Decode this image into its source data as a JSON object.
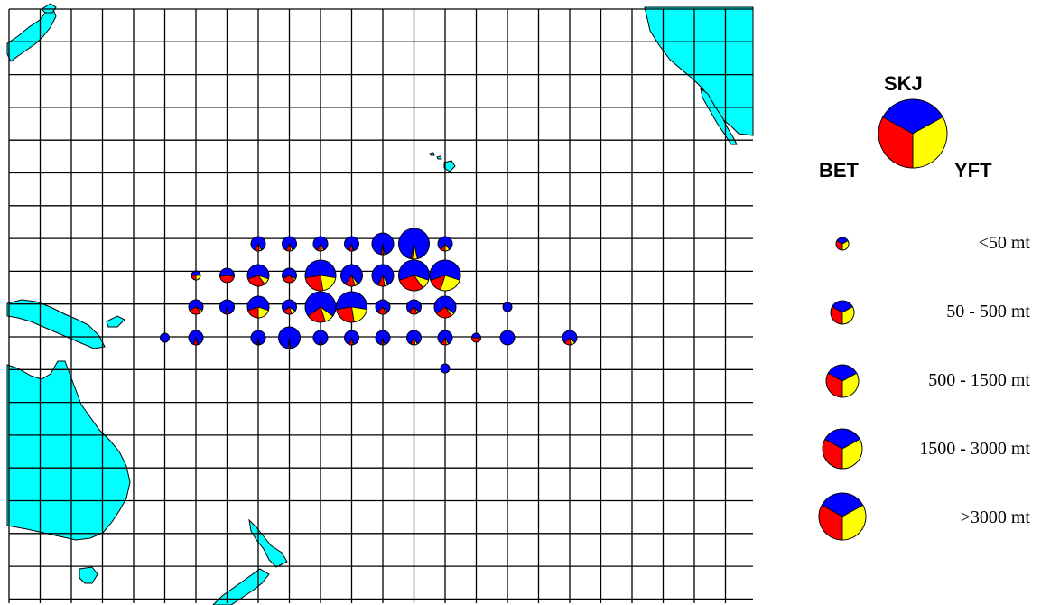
{
  "colors": {
    "land": "#00FFFF",
    "ocean": "#FFFFFF",
    "grid": "#000000",
    "skj": "#0000FF",
    "bet": "#FF0000",
    "yft": "#FFFF00"
  },
  "legend": {
    "species": {
      "top": "SKJ",
      "left": "BET",
      "right": "YFT"
    },
    "size_classes": [
      {
        "label": "<50 mt"
      },
      {
        "label": "50 - 500 mt"
      },
      {
        "label": "500 - 1500 mt"
      },
      {
        "label": "1500 - 3000 mt"
      },
      {
        "label": ">3000 mt"
      }
    ]
  },
  "catch_cells": [
    {
      "row": 0,
      "col": 8,
      "size": 2,
      "skj": 0.85,
      "bet": 0.1,
      "yft": 0.05
    },
    {
      "row": 0,
      "col": 9,
      "size": 2,
      "skj": 0.85,
      "bet": 0.1,
      "yft": 0.05
    },
    {
      "row": 0,
      "col": 10,
      "size": 2,
      "skj": 0.85,
      "bet": 0.1,
      "yft": 0.05
    },
    {
      "row": 0,
      "col": 11,
      "size": 2,
      "skj": 0.9,
      "bet": 0.08,
      "yft": 0.02
    },
    {
      "row": 0,
      "col": 12,
      "size": 3,
      "skj": 0.95,
      "bet": 0.03,
      "yft": 0.02
    },
    {
      "row": 0,
      "col": 13,
      "size": 4,
      "skj": 0.93,
      "bet": 0.02,
      "yft": 0.05
    },
    {
      "row": 0,
      "col": 14,
      "size": 2,
      "skj": 0.8,
      "bet": 0.1,
      "yft": 0.1
    },
    {
      "row": 1,
      "col": 6,
      "size": 1,
      "skj": 0.5,
      "bet": 0.25,
      "yft": 0.25
    },
    {
      "row": 1,
      "col": 7,
      "size": 2,
      "skj": 0.55,
      "bet": 0.45,
      "yft": 0.0
    },
    {
      "row": 1,
      "col": 8,
      "size": 3,
      "skj": 0.6,
      "bet": 0.3,
      "yft": 0.1
    },
    {
      "row": 1,
      "col": 9,
      "size": 2,
      "skj": 0.65,
      "bet": 0.3,
      "yft": 0.05
    },
    {
      "row": 1,
      "col": 10,
      "size": 4,
      "skj": 0.55,
      "bet": 0.25,
      "yft": 0.2
    },
    {
      "row": 1,
      "col": 11,
      "size": 3,
      "skj": 0.8,
      "bet": 0.15,
      "yft": 0.05
    },
    {
      "row": 1,
      "col": 12,
      "size": 3,
      "skj": 0.85,
      "bet": 0.1,
      "yft": 0.05
    },
    {
      "row": 1,
      "col": 13,
      "size": 4,
      "skj": 0.6,
      "bet": 0.3,
      "yft": 0.1
    },
    {
      "row": 1,
      "col": 14,
      "size": 4,
      "skj": 0.6,
      "bet": 0.15,
      "yft": 0.25
    },
    {
      "row": 2,
      "col": 6,
      "size": 2,
      "skj": 0.65,
      "bet": 0.3,
      "yft": 0.05
    },
    {
      "row": 2,
      "col": 7,
      "size": 2,
      "skj": 0.95,
      "bet": 0.05,
      "yft": 0.0
    },
    {
      "row": 2,
      "col": 8,
      "size": 3,
      "skj": 0.6,
      "bet": 0.2,
      "yft": 0.2
    },
    {
      "row": 2,
      "col": 9,
      "size": 2,
      "skj": 0.7,
      "bet": 0.2,
      "yft": 0.1
    },
    {
      "row": 2,
      "col": 10,
      "size": 4,
      "skj": 0.7,
      "bet": 0.2,
      "yft": 0.1
    },
    {
      "row": 2,
      "col": 11,
      "size": 4,
      "skj": 0.55,
      "bet": 0.25,
      "yft": 0.2
    },
    {
      "row": 2,
      "col": 12,
      "size": 2,
      "skj": 0.75,
      "bet": 0.2,
      "yft": 0.05
    },
    {
      "row": 2,
      "col": 13,
      "size": 2,
      "skj": 0.75,
      "bet": 0.2,
      "yft": 0.05
    },
    {
      "row": 2,
      "col": 14,
      "size": 3,
      "skj": 0.7,
      "bet": 0.25,
      "yft": 0.05
    },
    {
      "row": 2,
      "col": 16,
      "size": 1,
      "skj": 1.0,
      "bet": 0.0,
      "yft": 0.0
    },
    {
      "row": 3,
      "col": 5,
      "size": 1,
      "skj": 1.0,
      "bet": 0.0,
      "yft": 0.0
    },
    {
      "row": 3,
      "col": 6,
      "size": 2,
      "skj": 0.9,
      "bet": 0.08,
      "yft": 0.02
    },
    {
      "row": 3,
      "col": 8,
      "size": 2,
      "skj": 0.95,
      "bet": 0.03,
      "yft": 0.02
    },
    {
      "row": 3,
      "col": 9,
      "size": 3,
      "skj": 0.97,
      "bet": 0.02,
      "yft": 0.01
    },
    {
      "row": 3,
      "col": 10,
      "size": 2,
      "skj": 0.95,
      "bet": 0.03,
      "yft": 0.02
    },
    {
      "row": 3,
      "col": 11,
      "size": 2,
      "skj": 0.9,
      "bet": 0.07,
      "yft": 0.03
    },
    {
      "row": 3,
      "col": 12,
      "size": 2,
      "skj": 0.92,
      "bet": 0.05,
      "yft": 0.03
    },
    {
      "row": 3,
      "col": 13,
      "size": 2,
      "skj": 0.85,
      "bet": 0.1,
      "yft": 0.05
    },
    {
      "row": 3,
      "col": 14,
      "size": 2,
      "skj": 0.85,
      "bet": 0.1,
      "yft": 0.05
    },
    {
      "row": 3,
      "col": 15,
      "size": 1,
      "skj": 0.5,
      "bet": 0.45,
      "yft": 0.05
    },
    {
      "row": 3,
      "col": 16,
      "size": 2,
      "skj": 1.0,
      "bet": 0.0,
      "yft": 0.0
    },
    {
      "row": 3,
      "col": 18,
      "size": 2,
      "skj": 0.75,
      "bet": 0.15,
      "yft": 0.1
    },
    {
      "row": 4,
      "col": 14,
      "size": 1,
      "skj": 1.0,
      "bet": 0.0,
      "yft": 0.0
    }
  ]
}
